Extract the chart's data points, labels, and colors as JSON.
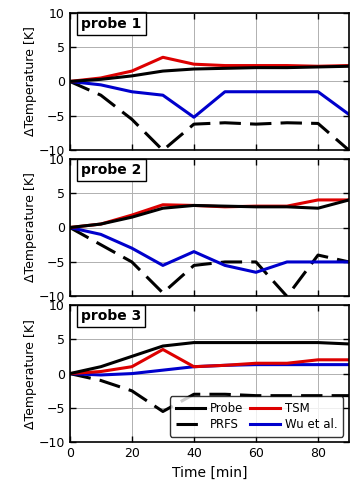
{
  "time": [
    0,
    10,
    20,
    30,
    40,
    50,
    60,
    70,
    80,
    90
  ],
  "probe1": {
    "probe": [
      0,
      0.3,
      0.8,
      1.5,
      1.8,
      1.9,
      2.0,
      2.0,
      2.1,
      2.2
    ],
    "prfs": [
      0,
      -2.0,
      -5.5,
      -10.0,
      -6.2,
      -6.0,
      -6.2,
      -6.0,
      -6.1,
      -10.0
    ],
    "tsm": [
      0,
      0.5,
      1.5,
      3.5,
      2.5,
      2.3,
      2.3,
      2.3,
      2.2,
      2.3
    ],
    "wu": [
      0,
      -0.5,
      -1.5,
      -2.0,
      -5.2,
      -1.5,
      -1.5,
      -1.5,
      -1.5,
      -4.8
    ]
  },
  "probe2": {
    "probe": [
      0,
      0.5,
      1.5,
      2.8,
      3.2,
      3.1,
      3.0,
      3.0,
      2.8,
      4.0
    ],
    "prfs": [
      0,
      -2.5,
      -5.0,
      -9.5,
      -5.5,
      -5.0,
      -5.0,
      -10.0,
      -4.0,
      -5.0
    ],
    "tsm": [
      0,
      0.5,
      1.8,
      3.3,
      3.2,
      3.0,
      3.1,
      3.1,
      4.0,
      4.0
    ],
    "wu": [
      0,
      -1.0,
      -3.0,
      -5.5,
      -3.5,
      -5.5,
      -6.5,
      -5.0,
      -5.0,
      -5.0
    ]
  },
  "probe3": {
    "probe": [
      0,
      1.0,
      2.5,
      4.0,
      4.5,
      4.5,
      4.5,
      4.5,
      4.5,
      4.3
    ],
    "prfs": [
      0,
      -1.0,
      -2.5,
      -5.5,
      -3.0,
      -3.0,
      -3.2,
      -3.2,
      -3.2,
      -3.2
    ],
    "tsm": [
      0,
      0.3,
      1.0,
      3.5,
      1.0,
      1.2,
      1.5,
      1.5,
      2.0,
      2.0
    ],
    "wu": [
      0,
      -0.2,
      0.0,
      0.5,
      1.0,
      1.2,
      1.3,
      1.3,
      1.3,
      1.3
    ]
  },
  "ylim": [
    -10,
    10
  ],
  "yticks": [
    -10,
    -5,
    0,
    5,
    10
  ],
  "xlim": [
    0,
    90
  ],
  "xticks": [
    0,
    20,
    40,
    60,
    80
  ],
  "xlabel": "Time [min]",
  "ylabel": "ΔTemperature [K]",
  "probe_color": "#000000",
  "prfs_color": "#000000",
  "tsm_color": "#dd0000",
  "wu_color": "#0000cc",
  "bg_color": "#ffffff",
  "grid_color": "#b0b0b0",
  "subplot_labels": [
    "probe 1",
    "probe 2",
    "probe 3"
  ]
}
